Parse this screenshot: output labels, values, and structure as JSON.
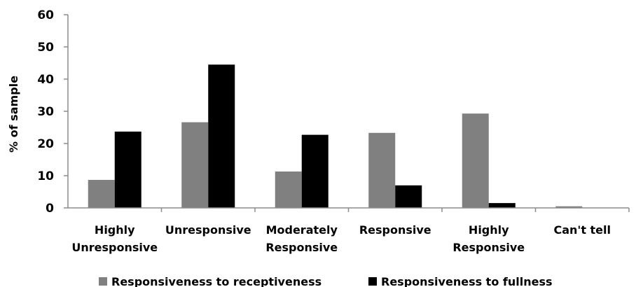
{
  "chart_data": {
    "type": "bar",
    "title": "",
    "xlabel": "",
    "ylabel": "% of sample",
    "ylim": [
      0,
      60
    ],
    "yticks": [
      0,
      10,
      20,
      30,
      40,
      50,
      60
    ],
    "grid": false,
    "legend_position": "bottom",
    "categories": [
      [
        "Highly",
        "Unresponsive"
      ],
      [
        "Unresponsive"
      ],
      [
        "Moderately",
        "Responsive"
      ],
      [
        "Responsive"
      ],
      [
        "Highly",
        "Responsive"
      ],
      [
        "Can't tell"
      ]
    ],
    "series": [
      {
        "name": "Responsiveness to receptiveness",
        "color": "#808080",
        "values": [
          8.7,
          26.6,
          11.3,
          23.3,
          29.3,
          0.5
        ]
      },
      {
        "name": "Responsiveness to fullness",
        "color": "#000000",
        "values": [
          23.7,
          44.5,
          22.7,
          7.0,
          1.5,
          0
        ]
      }
    ]
  }
}
